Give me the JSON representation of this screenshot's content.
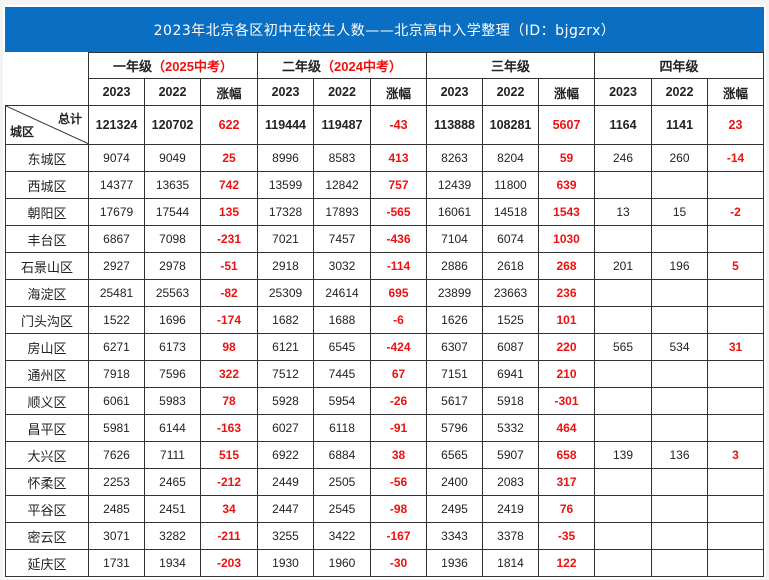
{
  "title": "2023年北京各区初中在校生人数——北京高中入学整理（ID：bjgzrx）",
  "colors": {
    "title_bg": "#0a6fc2",
    "change_text": "#ee1111"
  },
  "grade_headers": [
    {
      "label": "一年级",
      "note": "（2025中考）"
    },
    {
      "label": "二年级",
      "note": "（2024中考）"
    },
    {
      "label": "三年级",
      "note": ""
    },
    {
      "label": "四年级",
      "note": ""
    }
  ],
  "sub_headers": [
    "2023",
    "2022",
    "涨幅"
  ],
  "corner": {
    "top_right": "总计",
    "bottom_left": "城区"
  },
  "total": [
    "121324",
    "120702",
    "622",
    "119444",
    "119487",
    "-43",
    "113888",
    "108281",
    "5607",
    "1164",
    "1141",
    "23"
  ],
  "rows": [
    {
      "district": "东城区",
      "v": [
        "9074",
        "9049",
        "25",
        "8996",
        "8583",
        "413",
        "8263",
        "8204",
        "59",
        "246",
        "260",
        "-14"
      ]
    },
    {
      "district": "西城区",
      "v": [
        "14377",
        "13635",
        "742",
        "13599",
        "12842",
        "757",
        "12439",
        "11800",
        "639",
        "",
        "",
        ""
      ]
    },
    {
      "district": "朝阳区",
      "v": [
        "17679",
        "17544",
        "135",
        "17328",
        "17893",
        "-565",
        "16061",
        "14518",
        "1543",
        "13",
        "15",
        "-2"
      ]
    },
    {
      "district": "丰台区",
      "v": [
        "6867",
        "7098",
        "-231",
        "7021",
        "7457",
        "-436",
        "7104",
        "6074",
        "1030",
        "",
        "",
        ""
      ]
    },
    {
      "district": "石景山区",
      "v": [
        "2927",
        "2978",
        "-51",
        "2918",
        "3032",
        "-114",
        "2886",
        "2618",
        "268",
        "201",
        "196",
        "5"
      ]
    },
    {
      "district": "海淀区",
      "v": [
        "25481",
        "25563",
        "-82",
        "25309",
        "24614",
        "695",
        "23899",
        "23663",
        "236",
        "",
        "",
        ""
      ]
    },
    {
      "district": "门头沟区",
      "v": [
        "1522",
        "1696",
        "-174",
        "1682",
        "1688",
        "-6",
        "1626",
        "1525",
        "101",
        "",
        "",
        ""
      ]
    },
    {
      "district": "房山区",
      "v": [
        "6271",
        "6173",
        "98",
        "6121",
        "6545",
        "-424",
        "6307",
        "6087",
        "220",
        "565",
        "534",
        "31"
      ]
    },
    {
      "district": "通州区",
      "v": [
        "7918",
        "7596",
        "322",
        "7512",
        "7445",
        "67",
        "7151",
        "6941",
        "210",
        "",
        "",
        ""
      ]
    },
    {
      "district": "顺义区",
      "v": [
        "6061",
        "5983",
        "78",
        "5928",
        "5954",
        "-26",
        "5617",
        "5918",
        "-301",
        "",
        "",
        ""
      ]
    },
    {
      "district": "昌平区",
      "v": [
        "5981",
        "6144",
        "-163",
        "6027",
        "6118",
        "-91",
        "5796",
        "5332",
        "464",
        "",
        "",
        ""
      ]
    },
    {
      "district": "大兴区",
      "v": [
        "7626",
        "7111",
        "515",
        "6922",
        "6884",
        "38",
        "6565",
        "5907",
        "658",
        "139",
        "136",
        "3"
      ]
    },
    {
      "district": "怀柔区",
      "v": [
        "2253",
        "2465",
        "-212",
        "2449",
        "2505",
        "-56",
        "2400",
        "2083",
        "317",
        "",
        "",
        ""
      ]
    },
    {
      "district": "平谷区",
      "v": [
        "2485",
        "2451",
        "34",
        "2447",
        "2545",
        "-98",
        "2495",
        "2419",
        "76",
        "",
        "",
        ""
      ]
    },
    {
      "district": "密云区",
      "v": [
        "3071",
        "3282",
        "-211",
        "3255",
        "3422",
        "-167",
        "3343",
        "3378",
        "-35",
        "",
        "",
        ""
      ]
    },
    {
      "district": "延庆区",
      "v": [
        "1731",
        "1934",
        "-203",
        "1930",
        "1960",
        "-30",
        "1936",
        "1814",
        "122",
        "",
        "",
        ""
      ]
    }
  ]
}
